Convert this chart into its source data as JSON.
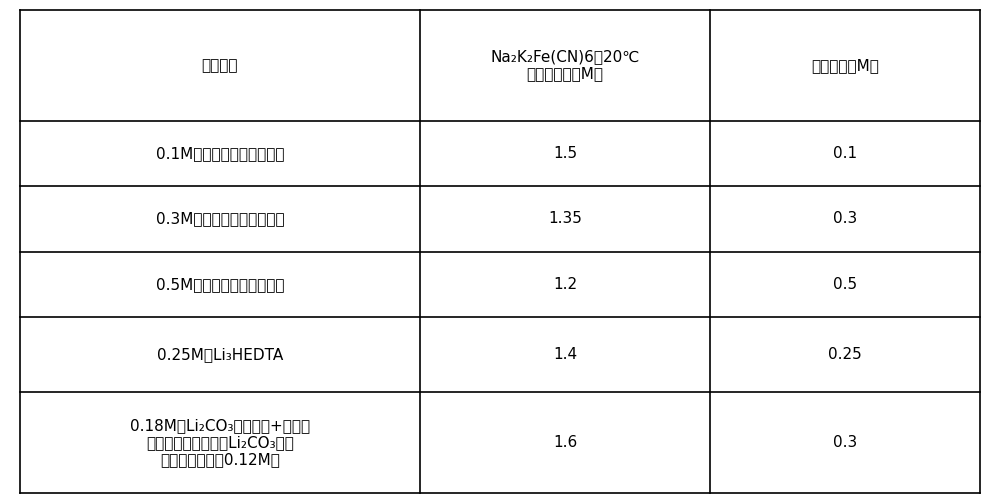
{
  "col_headers": [
    "缓冲材料",
    "Na₂K₂Fe(CN)6在20℃\n时的溶解度（M）",
    "缓冲容量（M）"
  ],
  "rows": [
    {
      "col1": "0.1M的钠钾磷酸盐（可溶）",
      "col2": "1.5",
      "col3": "0.1"
    },
    {
      "col1": "0.3M的钠钾磷酸盐（可溶）",
      "col2": "1.35",
      "col3": "0.3"
    },
    {
      "col1": "0.5M的钠钾磷酸盐（可溶）",
      "col2": "1.2",
      "col3": "0.5"
    },
    {
      "col1": "0.25M的Li₃HEDTA",
      "col2": "1.4",
      "col3": "0.25"
    },
    {
      "col1": "0.18M的Li₂CO₃（可溶）+另外的\n与水溶液接触的固体Li₂CO₃（如\n若溶解，另外的0.12M）",
      "col2": "1.6",
      "col3": "0.3"
    }
  ],
  "bg_color": "#ffffff",
  "line_color": "#000000",
  "text_color": "#000000",
  "font_size": 11,
  "header_font_size": 11
}
